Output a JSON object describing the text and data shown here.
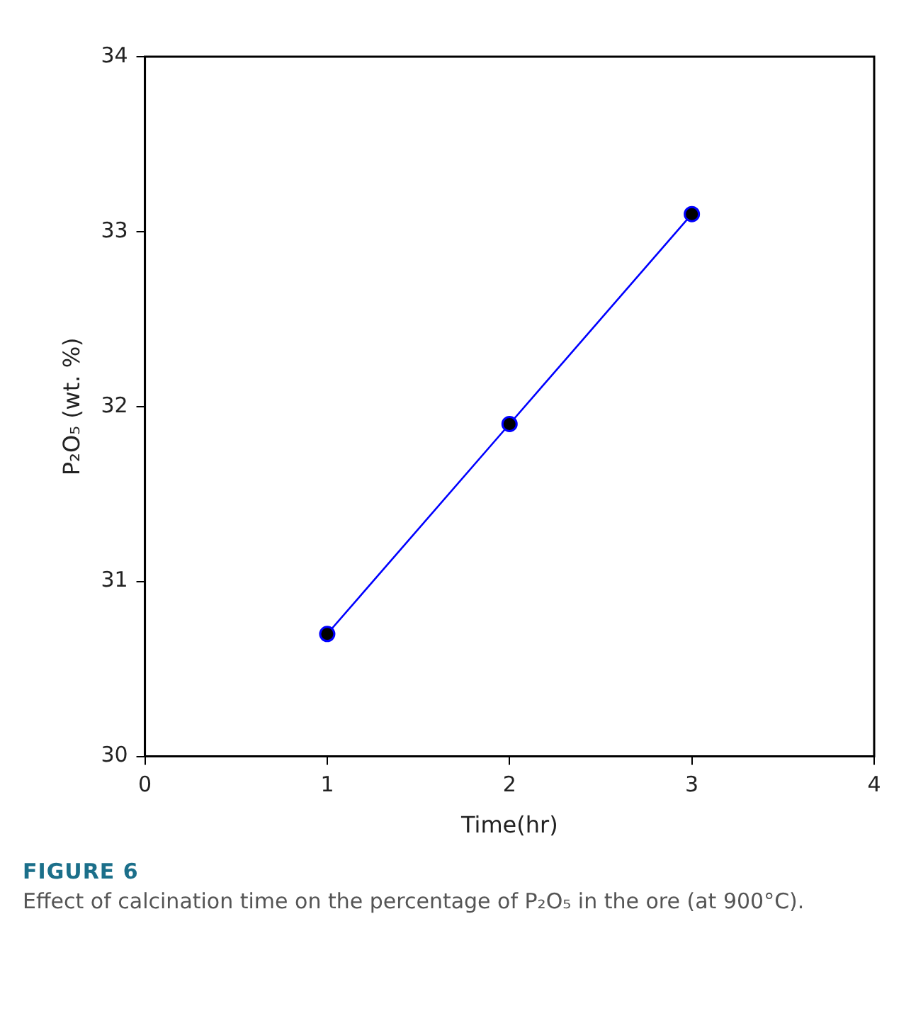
{
  "chart_data": {
    "type": "line",
    "xlabel": "Time(hr)",
    "ylabel": "P₂O₅ (wt. %)",
    "x": [
      1,
      2,
      3
    ],
    "series": [
      {
        "color": "#0000ff",
        "values": [
          30.7,
          31.9,
          33.1
        ]
      }
    ],
    "xlim": [
      0,
      4
    ],
    "xticks": [
      0,
      1,
      2,
      3,
      4
    ],
    "ylim": [
      30,
      34
    ],
    "yticks": [
      30,
      31,
      32,
      33,
      34
    ],
    "grid": false,
    "legend": false,
    "marker": "circle",
    "line_style": "solid",
    "annotations": [
      "FIGURE 6",
      "Effect of calcination time on the percentage of P₂O₅ in the ore (at 900°C)."
    ]
  }
}
